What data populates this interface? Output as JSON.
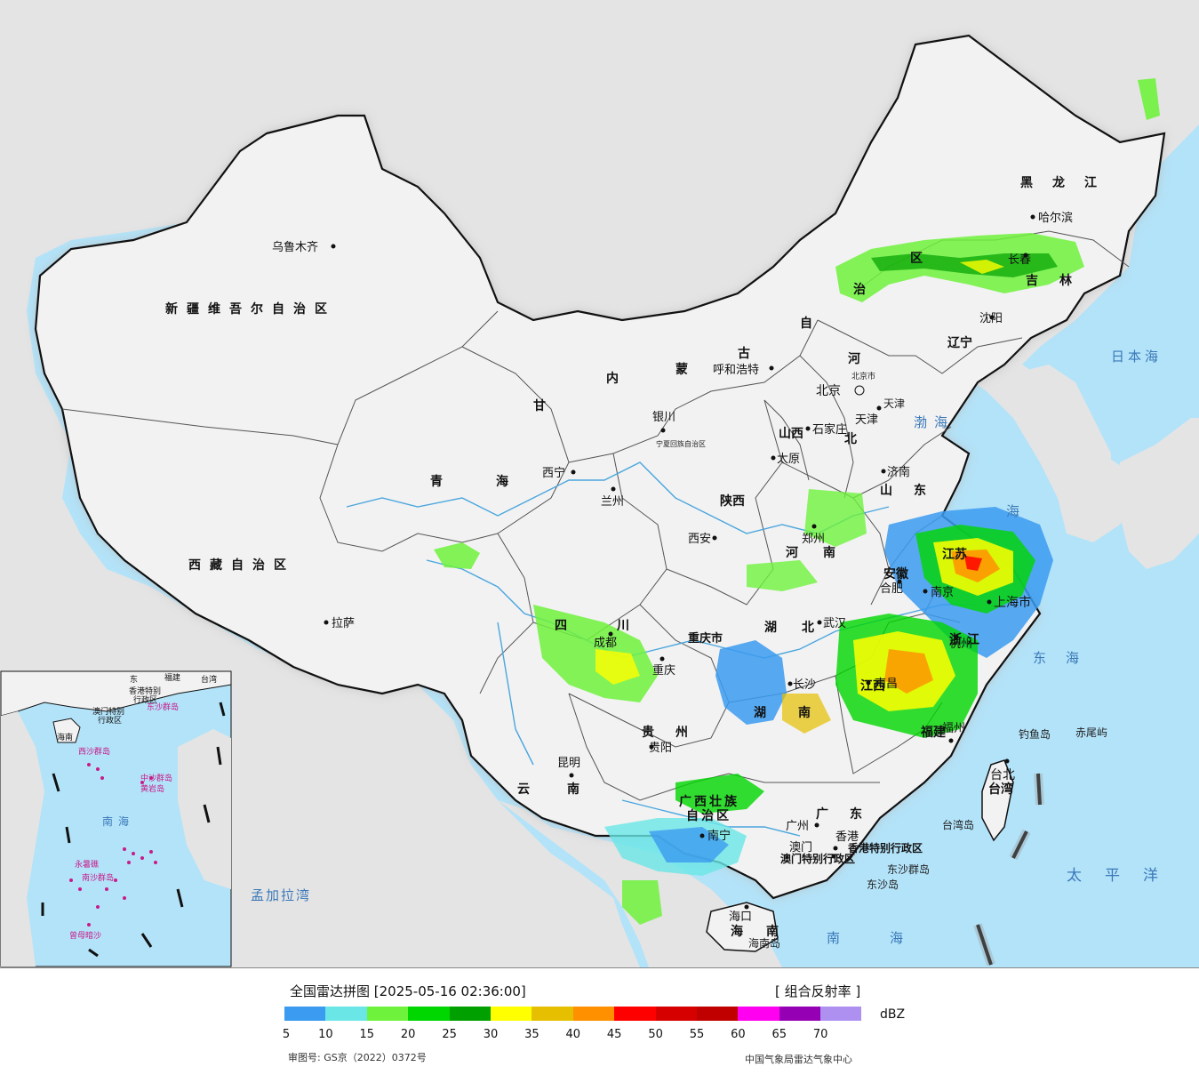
{
  "title": "全国雷达拼图 [2025-05-16 02:36:00]",
  "product": "[ 组合反射率 ]",
  "unit": "dBZ",
  "approval": "审图号: GS京（2022）0372号",
  "organization": "中国气象局雷达气象中心",
  "colors": {
    "ocean": "#b3e3f9",
    "land": "#eeeeee",
    "foreign": "#e4e4e4",
    "border": "#111111",
    "river": "#4aa6de"
  },
  "legend": {
    "ticks": [
      "5",
      "10",
      "15",
      "20",
      "25",
      "30",
      "35",
      "40",
      "45",
      "50",
      "55",
      "60",
      "65",
      "70"
    ],
    "colors": [
      "#3b9bf0",
      "#6ae6e6",
      "#6ef23c",
      "#00d600",
      "#00a000",
      "#ffff00",
      "#e6c000",
      "#ff9000",
      "#ff0000",
      "#d60000",
      "#c00000",
      "#ff00f0",
      "#9600b4",
      "#ad90f0"
    ]
  },
  "map": {
    "provinces": [
      {
        "id": "xinjiang",
        "text": "新疆维吾尔自治区"
      },
      {
        "id": "xizang",
        "text": "西藏自治区"
      },
      {
        "id": "qinghai",
        "text": "青海"
      },
      {
        "id": "gansu",
        "text": "甘"
      },
      {
        "id": "sichuan",
        "text": "四川"
      },
      {
        "id": "yunnan",
        "text": "云南"
      },
      {
        "id": "guizhou",
        "text": "贵州"
      },
      {
        "id": "guangxi",
        "text": "广西壮族"
      },
      {
        "id": "guangxi2",
        "text": "自治区"
      },
      {
        "id": "guangdong",
        "text": "广东"
      },
      {
        "id": "hunan",
        "text": "湖南"
      },
      {
        "id": "hubei",
        "text": "湖北"
      },
      {
        "id": "henan",
        "text": "河南"
      },
      {
        "id": "shaanxi",
        "text": "陕西"
      },
      {
        "id": "shanxi",
        "text": "山西"
      },
      {
        "id": "hebei",
        "text": "北"
      },
      {
        "id": "shandong",
        "text": "山东"
      },
      {
        "id": "jiangsu",
        "text": "江苏"
      },
      {
        "id": "anhui",
        "text": "安徽"
      },
      {
        "id": "zhejiang",
        "text": "浙江"
      },
      {
        "id": "jiangxi",
        "text": "江西"
      },
      {
        "id": "fujian",
        "text": "福建"
      },
      {
        "id": "taiwan",
        "text": "台湾"
      },
      {
        "id": "hainan",
        "text": "海南"
      },
      {
        "id": "heilongjiang",
        "text": "黑龙江"
      },
      {
        "id": "jilin",
        "text": "吉林"
      },
      {
        "id": "liaoning",
        "text": "辽宁"
      },
      {
        "id": "neimenggu1",
        "text": "内"
      },
      {
        "id": "neimenggu2",
        "text": "蒙"
      },
      {
        "id": "neimenggu3",
        "text": "古"
      },
      {
        "id": "neimenggu4",
        "text": "自"
      },
      {
        "id": "neimenggu5",
        "text": "治"
      },
      {
        "id": "neimenggu6",
        "text": "区"
      },
      {
        "id": "chongqing",
        "text": "重庆市"
      },
      {
        "id": "tianjin",
        "text": "天津"
      },
      {
        "id": "hebei2",
        "text": "河"
      },
      {
        "id": "ningxia",
        "text": "宁夏回族自治区"
      },
      {
        "id": "xianggang",
        "text": "香港特别行政区"
      },
      {
        "id": "aomen",
        "text": "澳门特别行政区"
      },
      {
        "id": "beijingshi",
        "text": "北京市"
      }
    ],
    "cities": [
      {
        "id": "urumqi",
        "text": "乌鲁木齐"
      },
      {
        "id": "lhasa",
        "text": "拉萨"
      },
      {
        "id": "xining",
        "text": "西宁"
      },
      {
        "id": "lanzhou",
        "text": "兰州"
      },
      {
        "id": "yinchuan",
        "text": "银川"
      },
      {
        "id": "hohhot",
        "text": "呼和浩特"
      },
      {
        "id": "beijing",
        "text": "北京"
      },
      {
        "id": "tianjin",
        "text": "天津"
      },
      {
        "id": "shijiazhuang",
        "text": "石家庄"
      },
      {
        "id": "taiyuan",
        "text": "太原"
      },
      {
        "id": "jinan",
        "text": "济南"
      },
      {
        "id": "zhengzhou",
        "text": "郑州"
      },
      {
        "id": "xian",
        "text": "西安"
      },
      {
        "id": "hefei",
        "text": "合肥"
      },
      {
        "id": "nanjing",
        "text": "南京"
      },
      {
        "id": "shanghai",
        "text": "上海市"
      },
      {
        "id": "hangzhou",
        "text": "杭州"
      },
      {
        "id": "wuhan",
        "text": "武汉"
      },
      {
        "id": "changsha",
        "text": "长沙"
      },
      {
        "id": "nanchang",
        "text": "南昌"
      },
      {
        "id": "fuzhou",
        "text": "福州"
      },
      {
        "id": "taibei",
        "text": "台北"
      },
      {
        "id": "chengdu",
        "text": "成都"
      },
      {
        "id": "chongqing",
        "text": "重庆"
      },
      {
        "id": "guiyang",
        "text": "贵阳"
      },
      {
        "id": "kunming",
        "text": "昆明"
      },
      {
        "id": "nanning",
        "text": "南宁"
      },
      {
        "id": "guangzhou",
        "text": "广州"
      },
      {
        "id": "xianggang",
        "text": "香港"
      },
      {
        "id": "aomen",
        "text": "澳门"
      },
      {
        "id": "haikou",
        "text": "海口"
      },
      {
        "id": "shenyang",
        "text": "沈阳"
      },
      {
        "id": "changchun",
        "text": "长春"
      },
      {
        "id": "harbin",
        "text": "哈尔滨"
      }
    ],
    "seas": [
      {
        "id": "bohai",
        "text": "渤海"
      },
      {
        "id": "huanghai",
        "text": "海"
      },
      {
        "id": "donghai",
        "text": "东海"
      },
      {
        "id": "nanhai",
        "text": "南海"
      },
      {
        "id": "taipingyang",
        "text": "太平洋"
      },
      {
        "id": "ribenhai",
        "text": "日本海"
      },
      {
        "id": "mengjialawan",
        "text": "孟加拉湾"
      }
    ],
    "islands": [
      {
        "id": "diaoyu",
        "text": "钓鱼岛"
      },
      {
        "id": "chiwei",
        "text": "赤尾屿"
      },
      {
        "id": "dongsha",
        "text": "东沙群岛"
      },
      {
        "id": "dongsha2",
        "text": "东沙岛"
      },
      {
        "id": "taiwandao",
        "text": "台湾岛"
      },
      {
        "id": "hainandao",
        "text": "海南岛"
      }
    ],
    "inset": {
      "labels": [
        {
          "id": "nanhai",
          "text": "南海"
        },
        {
          "id": "hainan",
          "text": "海南"
        },
        {
          "id": "xisha",
          "text": "西沙群岛"
        },
        {
          "id": "zhongsha",
          "text": "中沙群岛"
        },
        {
          "id": "huangyan",
          "text": "黄岩岛"
        },
        {
          "id": "nansha",
          "text": "南沙群岛"
        },
        {
          "id": "zengmu",
          "text": "曾母暗沙"
        },
        {
          "id": "dongsha",
          "text": "东沙群岛"
        },
        {
          "id": "yongshu",
          "text": "永暑礁"
        },
        {
          "id": "xianggang",
          "text": "香港特别"
        },
        {
          "id": "xg2",
          "text": "行政区"
        },
        {
          "id": "aomen",
          "text": "澳门特别"
        },
        {
          "id": "am2",
          "text": "行政区"
        },
        {
          "id": "taiwan",
          "text": "台湾"
        },
        {
          "id": "fujian",
          "text": "福建"
        },
        {
          "id": "guangdong",
          "text": "东"
        }
      ]
    }
  }
}
